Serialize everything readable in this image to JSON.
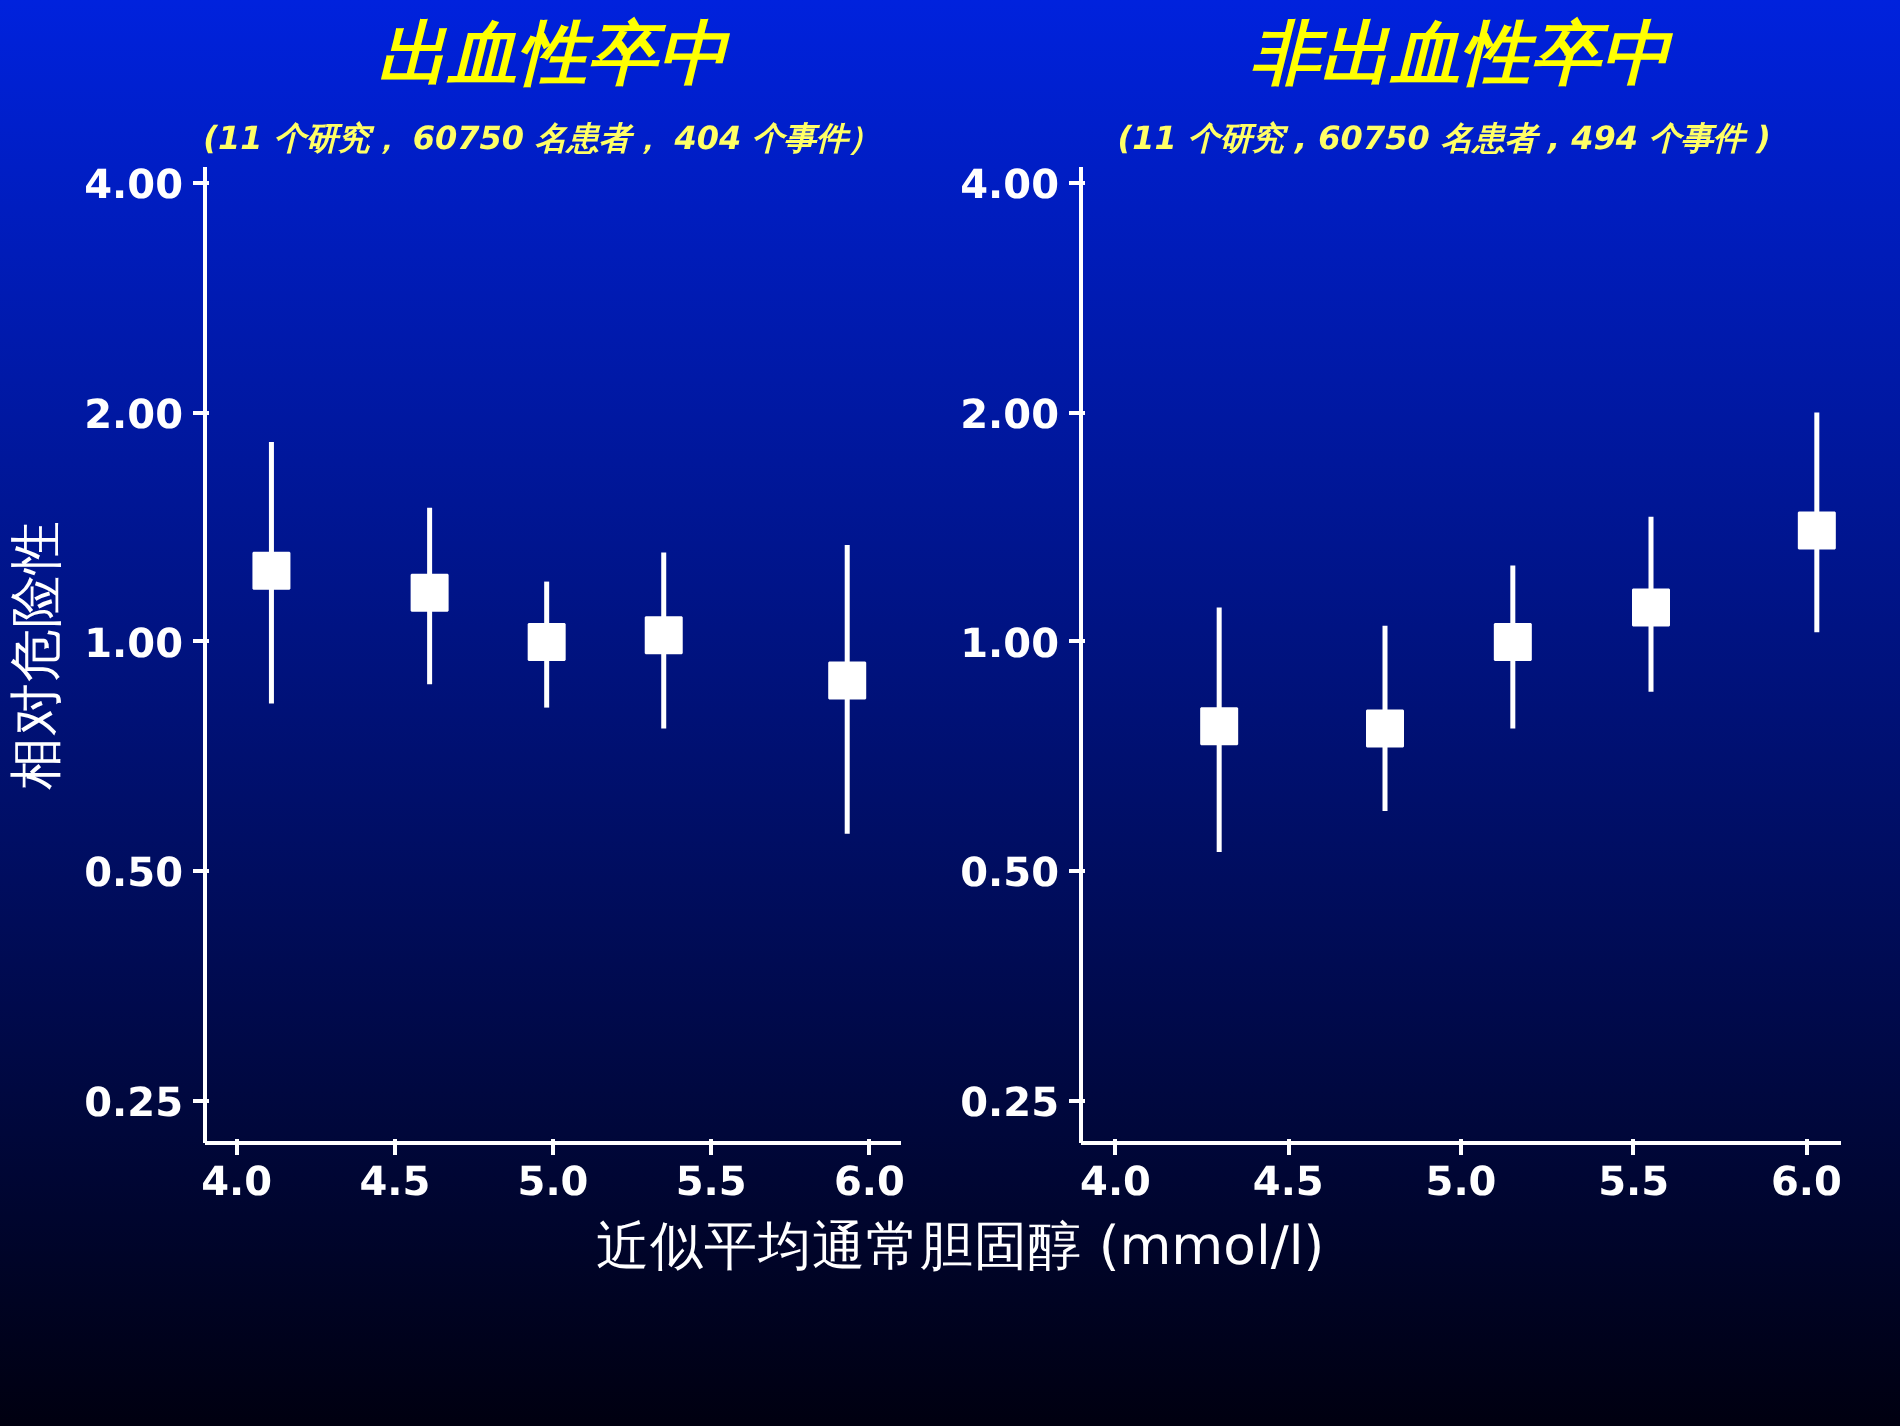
{
  "chart_data": [
    {
      "type": "scatter",
      "title": "出血性卒中",
      "subtitle": "(11 个研究， 60750  名患者， 404  个事件）",
      "ylabel": "相对危险性",
      "xlabel": "近似平均通常胆固醇   (mmol/l)",
      "log": "y",
      "grid": false,
      "marker": "square",
      "xlim": [
        3.9,
        6.1
      ],
      "xticks": [
        {
          "value": 4,
          "label": "4.0"
        },
        {
          "value": 4.5,
          "label": "4.5"
        },
        {
          "value": 5,
          "label": "5.0"
        },
        {
          "value": 5.5,
          "label": "5.5"
        },
        {
          "value": 6,
          "label": "6.0"
        }
      ],
      "ylim": [
        0.22,
        4.2
      ],
      "yticks": [
        {
          "value": 0.25,
          "label": "0.25"
        },
        {
          "value": 0.5,
          "label": "0.50"
        },
        {
          "value": 1,
          "label": "1.00"
        },
        {
          "value": 2,
          "label": "2.00"
        },
        {
          "value": 4,
          "label": "4.00"
        }
      ],
      "series": [
        {
          "color": "#ffffff",
          "x": [
            4.11,
            4.61,
            4.98,
            5.35,
            5.93
          ],
          "values": [
            1.24,
            1.16,
            1.0,
            1.02,
            0.89
          ],
          "errors": [
            [
              0.83,
              1.83
            ],
            [
              0.88,
              1.5
            ],
            [
              0.82,
              1.2
            ],
            [
              0.77,
              1.31
            ],
            [
              0.56,
              1.34
            ]
          ]
        }
      ]
    },
    {
      "type": "scatter",
      "title": "非出血性卒中",
      "subtitle": "(11  个研究 , 60750  名患者 , 494  个事件 )",
      "log": "y",
      "grid": false,
      "marker": "square",
      "xlim": [
        3.9,
        6.1
      ],
      "xticks": [
        {
          "value": 4,
          "label": "4.0"
        },
        {
          "value": 4.5,
          "label": "4.5"
        },
        {
          "value": 5,
          "label": "5.0"
        },
        {
          "value": 5.5,
          "label": "5.5"
        },
        {
          "value": 6,
          "label": "6.0"
        }
      ],
      "ylim": [
        0.22,
        4.2
      ],
      "yticks": [
        {
          "value": 0.25,
          "label": "0.25"
        },
        {
          "value": 0.5,
          "label": "0.50"
        },
        {
          "value": 1,
          "label": "1.00"
        },
        {
          "value": 2,
          "label": "2.00"
        },
        {
          "value": 4,
          "label": "4.00"
        }
      ],
      "series": [
        {
          "color": "#ffffff",
          "x": [
            4.3,
            4.78,
            5.15,
            5.55,
            6.03
          ],
          "values": [
            0.775,
            0.77,
            1.0,
            1.11,
            1.4
          ],
          "errors": [
            [
              0.53,
              1.11
            ],
            [
              0.6,
              1.05
            ],
            [
              0.77,
              1.26
            ],
            [
              0.86,
              1.46
            ],
            [
              1.03,
              2.0
            ]
          ]
        }
      ]
    }
  ]
}
